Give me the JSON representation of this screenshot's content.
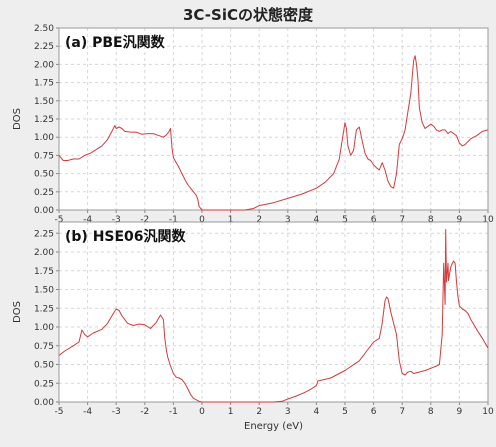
{
  "chart_title": "3C-SiCの状態密度",
  "colors": {
    "background": "#eeeeee",
    "plot_background": "#ffffff",
    "grid": "#d7d7d7",
    "line": "#d63a3a",
    "axis_text": "#333333"
  },
  "chart_data": [
    {
      "type": "line",
      "title": "(a) PBE汎関数",
      "xlabel": "",
      "ylabel": "DOS",
      "xlim": [
        -5,
        10
      ],
      "ylim": [
        0,
        2.5
      ],
      "xticks": [
        "-5",
        "-4",
        "-3",
        "-2",
        "-1",
        "0",
        "1",
        "2",
        "3",
        "4",
        "5",
        "6",
        "7",
        "8",
        "9",
        "10"
      ],
      "yticks": [
        "0.00",
        "0.25",
        "0.50",
        "0.75",
        "1.00",
        "1.25",
        "1.50",
        "1.75",
        "2.00",
        "2.25",
        "2.50"
      ],
      "grid": true,
      "series": [
        {
          "x": [
            -5.0,
            -4.85,
            -4.7,
            -4.5,
            -4.3,
            -4.1,
            -3.9,
            -3.7,
            -3.5,
            -3.3,
            -3.15,
            -3.05,
            -3.0,
            -2.9,
            -2.8,
            -2.7,
            -2.5,
            -2.3,
            -2.1,
            -1.9,
            -1.7,
            -1.5,
            -1.35,
            -1.25,
            -1.15,
            -1.1,
            -1.05,
            -1.0,
            -0.9,
            -0.8,
            -0.7,
            -0.6,
            -0.5,
            -0.4,
            -0.3,
            -0.2,
            -0.15,
            -0.1,
            0.0,
            0.1,
            0.5,
            1.0,
            1.5,
            1.8,
            2.0,
            2.5,
            3.0,
            3.5,
            4.0,
            4.3,
            4.6,
            4.8,
            4.9,
            5.0,
            5.05,
            5.1,
            5.2,
            5.3,
            5.4,
            5.5,
            5.6,
            5.7,
            5.8,
            5.9,
            6.0,
            6.1,
            6.2,
            6.3,
            6.4,
            6.5,
            6.6,
            6.7,
            6.8,
            6.9,
            7.0,
            7.1,
            7.2,
            7.3,
            7.4,
            7.45,
            7.5,
            7.55,
            7.6,
            7.7,
            7.8,
            7.9,
            8.0,
            8.1,
            8.2,
            8.3,
            8.4,
            8.5,
            8.6,
            8.7,
            8.8,
            8.9,
            9.0,
            9.1,
            9.2,
            9.4,
            9.6,
            9.8,
            10.0
          ],
          "y": [
            0.75,
            0.68,
            0.68,
            0.7,
            0.7,
            0.75,
            0.78,
            0.83,
            0.88,
            0.97,
            1.08,
            1.16,
            1.12,
            1.14,
            1.12,
            1.08,
            1.07,
            1.07,
            1.04,
            1.05,
            1.05,
            1.02,
            1.0,
            1.03,
            1.08,
            1.12,
            0.85,
            0.72,
            0.65,
            0.58,
            0.5,
            0.42,
            0.35,
            0.3,
            0.25,
            0.2,
            0.15,
            0.05,
            0.0,
            0.0,
            0.0,
            0.0,
            0.0,
            0.02,
            0.06,
            0.1,
            0.16,
            0.22,
            0.3,
            0.38,
            0.5,
            0.7,
            0.95,
            1.2,
            1.12,
            0.88,
            0.75,
            0.82,
            1.1,
            1.14,
            0.95,
            0.78,
            0.7,
            0.68,
            0.62,
            0.58,
            0.55,
            0.65,
            0.55,
            0.4,
            0.32,
            0.3,
            0.5,
            0.9,
            0.98,
            1.1,
            1.35,
            1.6,
            2.05,
            2.12,
            2.0,
            1.8,
            1.4,
            1.2,
            1.12,
            1.15,
            1.18,
            1.15,
            1.1,
            1.08,
            1.1,
            1.1,
            1.05,
            1.08,
            1.05,
            1.02,
            0.92,
            0.88,
            0.9,
            0.98,
            1.02,
            1.08,
            1.1
          ]
        }
      ]
    },
    {
      "type": "line",
      "title": "(b) HSE06汎関数",
      "xlabel": "Energy (eV)",
      "ylabel": "DOS",
      "xlim": [
        -5,
        10
      ],
      "ylim": [
        0,
        2.4
      ],
      "xticks": [
        "-5",
        "-4",
        "-3",
        "-2",
        "-1",
        "0",
        "1",
        "2",
        "3",
        "4",
        "5",
        "6",
        "7",
        "8",
        "9",
        "10"
      ],
      "yticks": [
        "0.00",
        "0.25",
        "0.50",
        "0.75",
        "1.00",
        "1.25",
        "1.50",
        "1.75",
        "2.00",
        "2.25"
      ],
      "grid": true,
      "series": [
        {
          "x": [
            -5.0,
            -4.8,
            -4.5,
            -4.3,
            -4.2,
            -4.1,
            -4.0,
            -3.8,
            -3.5,
            -3.3,
            -3.1,
            -3.0,
            -2.9,
            -2.8,
            -2.6,
            -2.4,
            -2.2,
            -2.0,
            -1.8,
            -1.6,
            -1.45,
            -1.35,
            -1.3,
            -1.25,
            -1.2,
            -1.1,
            -1.0,
            -0.9,
            -0.8,
            -0.7,
            -0.6,
            -0.5,
            -0.4,
            -0.3,
            -0.2,
            -0.1,
            0.0,
            0.5,
            1.0,
            1.5,
            2.0,
            2.5,
            2.8,
            3.0,
            3.3,
            3.6,
            3.8,
            4.0,
            4.05,
            4.5,
            5.0,
            5.5,
            5.8,
            6.0,
            6.2,
            6.3,
            6.4,
            6.45,
            6.5,
            6.55,
            6.6,
            6.7,
            6.8,
            6.9,
            7.0,
            7.1,
            7.2,
            7.3,
            7.4,
            7.6,
            7.8,
            8.0,
            8.2,
            8.3,
            8.4,
            8.45,
            8.5,
            8.52,
            8.55,
            8.6,
            8.62,
            8.65,
            8.7,
            8.75,
            8.8,
            8.85,
            8.9,
            8.95,
            9.0,
            9.1,
            9.2,
            9.3,
            9.4,
            9.6,
            9.8,
            10.0
          ],
          "y": [
            0.62,
            0.68,
            0.75,
            0.8,
            0.96,
            0.9,
            0.87,
            0.92,
            0.97,
            1.05,
            1.18,
            1.24,
            1.22,
            1.15,
            1.05,
            1.02,
            1.04,
            1.03,
            0.98,
            1.06,
            1.16,
            1.1,
            0.85,
            0.7,
            0.6,
            0.48,
            0.38,
            0.33,
            0.32,
            0.3,
            0.25,
            0.18,
            0.1,
            0.05,
            0.03,
            0.01,
            0.0,
            0.0,
            0.0,
            0.0,
            0.0,
            0.0,
            0.01,
            0.04,
            0.08,
            0.13,
            0.17,
            0.22,
            0.28,
            0.32,
            0.42,
            0.55,
            0.7,
            0.8,
            0.85,
            1.05,
            1.35,
            1.4,
            1.38,
            1.3,
            1.2,
            1.05,
            0.9,
            0.55,
            0.38,
            0.36,
            0.4,
            0.41,
            0.38,
            0.4,
            0.42,
            0.45,
            0.48,
            0.5,
            0.9,
            1.85,
            1.3,
            2.3,
            1.6,
            1.85,
            1.62,
            1.7,
            1.8,
            1.85,
            1.88,
            1.85,
            1.6,
            1.4,
            1.28,
            1.24,
            1.22,
            1.18,
            1.1,
            0.97,
            0.85,
            0.72
          ]
        }
      ]
    }
  ]
}
